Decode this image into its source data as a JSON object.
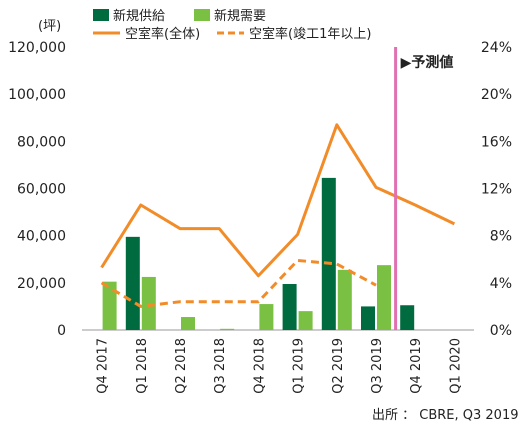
{
  "chart_data": {
    "type": "bar",
    "y_unit_label": "(坪)",
    "categories": [
      "Q4 2017",
      "Q1 2018",
      "Q2 2018",
      "Q3 2018",
      "Q4 2018",
      "Q1 2019",
      "Q2 2019",
      "Q3 2019",
      "Q4 2019",
      "Q1 2020"
    ],
    "y_left": {
      "min": 0,
      "max": 120000,
      "ticks": [
        "0",
        "20,000",
        "40,000",
        "60,000",
        "80,000",
        "100,000",
        "120,000"
      ],
      "tick_values": [
        0,
        20000,
        40000,
        60000,
        80000,
        100000,
        120000
      ]
    },
    "y_right": {
      "min": 0,
      "max": 24,
      "ticks": [
        "0%",
        "4%",
        "8%",
        "12%",
        "16%",
        "20%",
        "24%"
      ],
      "tick_values": [
        0,
        4,
        8,
        12,
        16,
        20,
        24
      ]
    },
    "bar_series": [
      {
        "name": "新規供給",
        "color": "#006b3f",
        "values": [
          null,
          39500,
          null,
          null,
          null,
          19500,
          64500,
          10000,
          10500,
          null
        ]
      },
      {
        "name": "新規需要",
        "color": "#7ac143",
        "values": [
          20500,
          22500,
          5500,
          500,
          11000,
          8000,
          25500,
          27500,
          null,
          null
        ]
      }
    ],
    "line_series": [
      {
        "name": "空室率(全体)",
        "color": "#f28c28",
        "style": "solid",
        "values": [
          5.3,
          10.6,
          8.6,
          8.6,
          4.6,
          8.1,
          17.4,
          12.1,
          10.6,
          9.0
        ]
      },
      {
        "name": "空室率(竣工1年以上)",
        "color": "#f28c28",
        "style": "dashed",
        "values": [
          4.0,
          2.0,
          2.4,
          2.4,
          2.4,
          5.9,
          5.6,
          3.8,
          null,
          null
        ]
      }
    ],
    "forecast": {
      "label": "▶予測値",
      "after_category_index": 7,
      "line_color": "#e070b0"
    },
    "source": "出所 ： CBRE, Q3 2019",
    "grid": false,
    "legend_position": "top"
  }
}
